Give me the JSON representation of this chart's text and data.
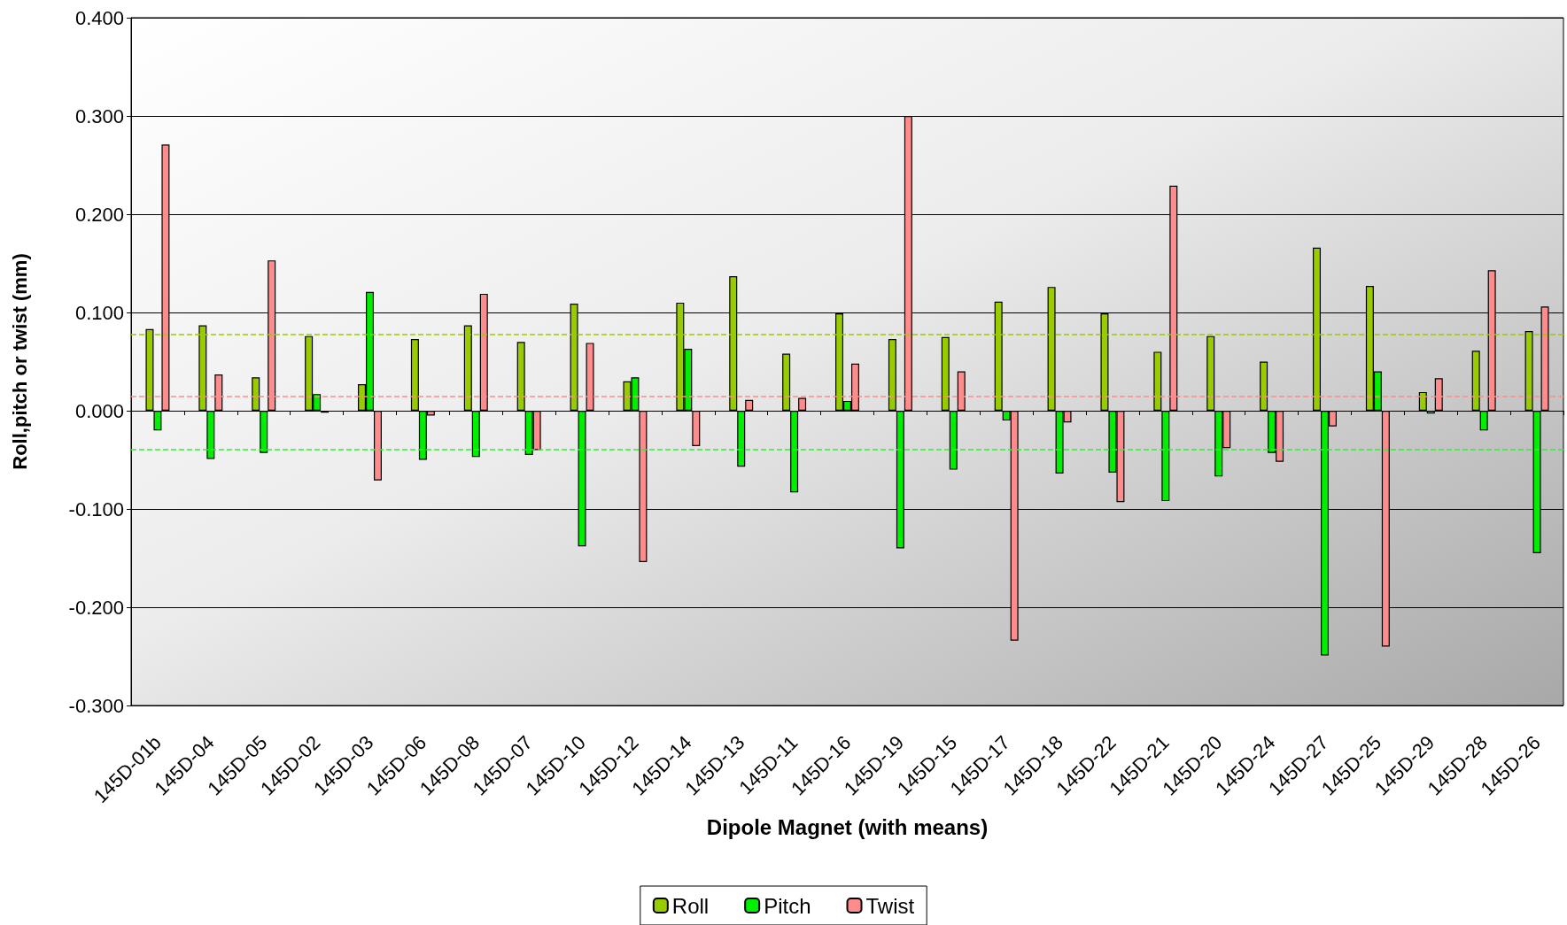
{
  "chart_data": {
    "type": "bar",
    "xlabel": "Dipole Magnet (with means)",
    "ylabel": "Roll,pitch or twist (mm)",
    "categories": [
      "145D-01b",
      "145D-04",
      "145D-05",
      "145D-02",
      "145D-03",
      "145D-06",
      "145D-08",
      "145D-07",
      "145D-10",
      "145D-12",
      "145D-14",
      "145D-13",
      "145D-11",
      "145D-16",
      "145D-19",
      "145D-15",
      "145D-17",
      "145D-18",
      "145D-22",
      "145D-21",
      "145D-20",
      "145D-24",
      "145D-27",
      "145D-25",
      "145D-29",
      "145D-28",
      "145D-26"
    ],
    "series": [
      {
        "name": "Roll",
        "color": "#99cc00",
        "values": [
          0.083,
          0.087,
          0.034,
          0.076,
          0.027,
          0.073,
          0.087,
          0.07,
          0.109,
          0.03,
          0.11,
          0.137,
          0.058,
          0.099,
          0.073,
          0.075,
          0.111,
          0.126,
          0.099,
          0.06,
          0.076,
          0.05,
          0.166,
          0.127,
          0.019,
          0.061,
          0.081
        ]
      },
      {
        "name": "Pitch",
        "color": "#00ee00",
        "values": [
          -0.02,
          -0.049,
          -0.043,
          0.017,
          0.121,
          -0.05,
          -0.047,
          -0.045,
          -0.138,
          0.034,
          0.063,
          -0.057,
          -0.083,
          0.01,
          -0.14,
          -0.06,
          -0.01,
          -0.064,
          -0.063,
          -0.092,
          -0.067,
          -0.043,
          -0.249,
          0.04,
          -0.003,
          -0.02,
          -0.145
        ]
      },
      {
        "name": "Twist",
        "color": "#ff8c8c",
        "values": [
          0.271,
          0.037,
          0.153,
          -0.002,
          -0.071,
          -0.005,
          0.119,
          -0.04,
          0.069,
          -0.154,
          -0.036,
          0.011,
          0.013,
          0.048,
          0.3,
          0.04,
          -0.234,
          -0.012,
          -0.093,
          0.229,
          -0.038,
          -0.052,
          -0.016,
          -0.24,
          0.033,
          0.143,
          0.106
        ]
      }
    ],
    "ylim": [
      -0.3,
      0.4
    ],
    "yticks": [
      {
        "value": -0.3,
        "label": "-0.300"
      },
      {
        "value": -0.2,
        "label": "-0.200"
      },
      {
        "value": -0.1,
        "label": "-0.100"
      },
      {
        "value": 0,
        "label": "0.000"
      },
      {
        "value": 0.1,
        "label": "0.100"
      },
      {
        "value": 0.2,
        "label": "0.200"
      },
      {
        "value": 0.3,
        "label": "0.300"
      },
      {
        "value": 0.4,
        "label": "0.400"
      }
    ],
    "ref_lines": [
      {
        "axis": "y",
        "value": 0.078,
        "color": "#99cc00",
        "line_style": "dashed"
      },
      {
        "axis": "y",
        "value": -0.039,
        "color": "#33ee33",
        "line_style": "dashed"
      },
      {
        "axis": "y",
        "value": 0.015,
        "color": "#ff8c8c",
        "line_style": "dashed"
      }
    ],
    "grid": "y",
    "legend": "bottom"
  }
}
